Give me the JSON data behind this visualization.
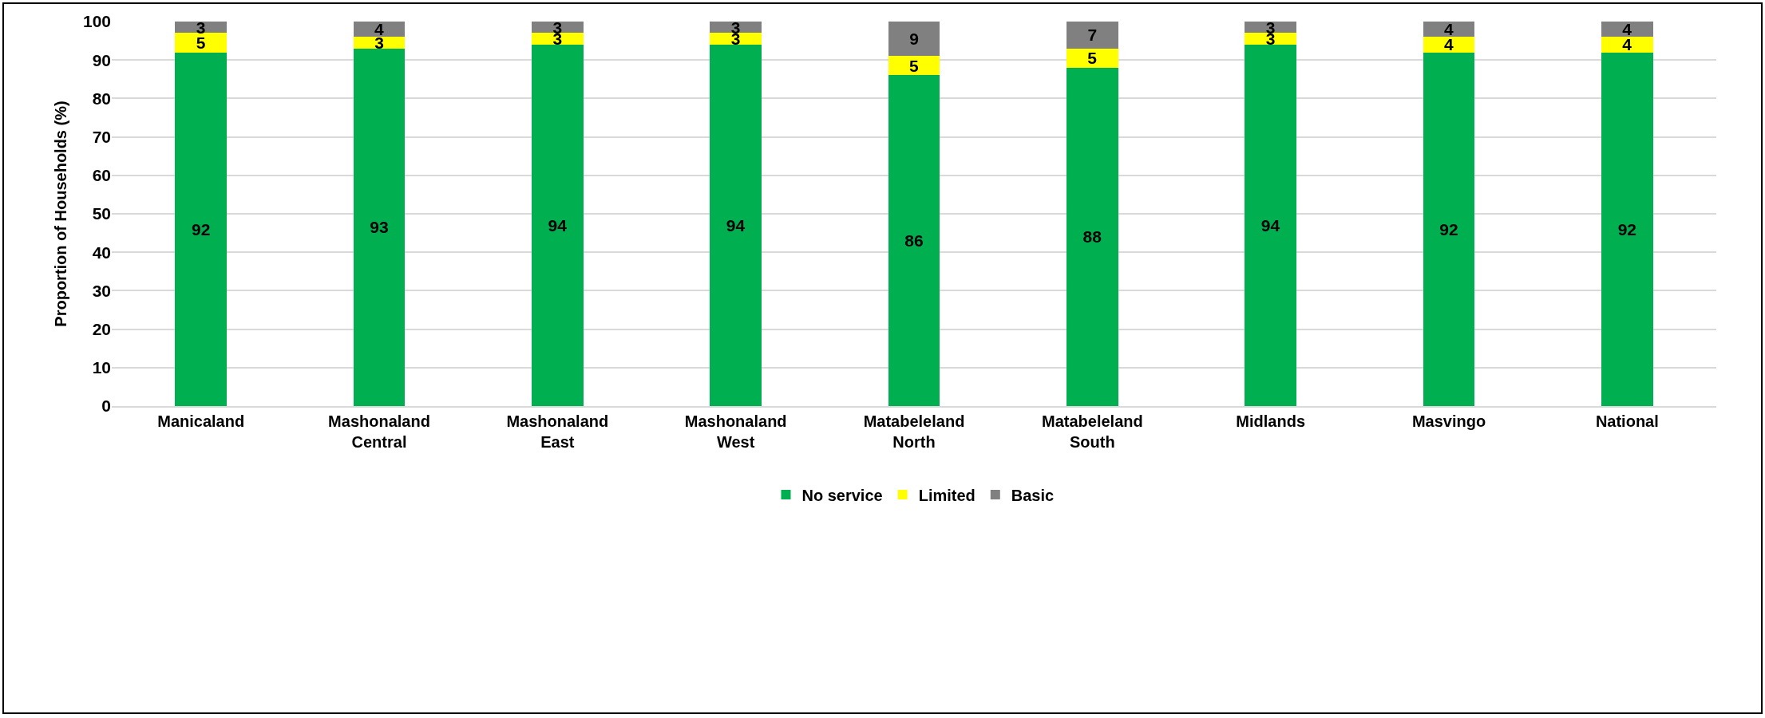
{
  "chart_data": {
    "type": "bar",
    "stacked": true,
    "ylabel": "Proportion of Households (%)",
    "categories": [
      "Manicaland",
      "Mashonaland Central",
      "Mashonaland East",
      "Mashonaland West",
      "Matabeleland North",
      "Matabeleland South",
      "Midlands",
      "Masvingo",
      "National"
    ],
    "series": [
      {
        "name": "No service",
        "color": "#00b050",
        "values": [
          92,
          93,
          94,
          94,
          86,
          88,
          94,
          92,
          92
        ]
      },
      {
        "name": "Limited",
        "color": "#ffff00",
        "values": [
          5,
          3,
          3,
          3,
          5,
          5,
          3,
          4,
          4
        ]
      },
      {
        "name": "Basic",
        "color": "#808080",
        "values": [
          3,
          4,
          3,
          3,
          9,
          7,
          3,
          4,
          4
        ]
      }
    ],
    "ylim": [
      0,
      100
    ],
    "yticks": [
      0,
      10,
      20,
      30,
      40,
      50,
      60,
      70,
      80,
      90,
      100
    ],
    "grid": "y",
    "legend": "bottom",
    "data_labels": true
  }
}
